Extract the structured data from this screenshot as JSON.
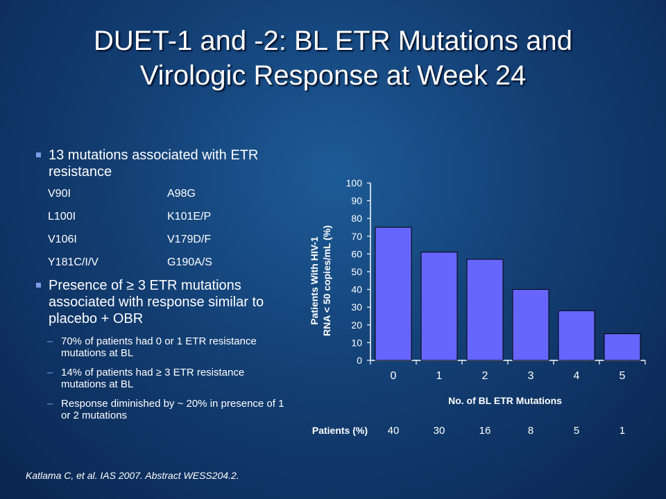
{
  "title_line1": "DUET-1 and -2: BL ETR Mutations and",
  "title_line2": "Virologic Response at Week 24",
  "bullet1": "13 mutations associated with ETR resistance",
  "mutations": [
    [
      "V90I",
      "A98G"
    ],
    [
      "L100I",
      "K101E/P"
    ],
    [
      "V106I",
      "V179D/F"
    ],
    [
      "Y181C/I/V",
      "G190A/S"
    ]
  ],
  "bullet2": "Presence of ≥ 3 ETR mutations associated with response similar to placebo + OBR",
  "subbullets": [
    "70% of patients had 0 or 1 ETR resistance mutations at BL",
    " 14% of patients had ≥ 3 ETR resistance mutations at BL",
    "Response diminished by ~ 20% in presence of 1 or 2 mutations"
  ],
  "citation": "Katlama C, et al. IAS 2007. Abstract WESS204.2.",
  "colors": {
    "bar": "#6666ff",
    "bullet": "#7f9be8"
  },
  "chart_data": {
    "type": "bar",
    "categories": [
      "0",
      "1",
      "2",
      "3",
      "4",
      "5"
    ],
    "values": [
      75,
      61,
      57,
      40,
      28,
      15
    ],
    "ylim": [
      0,
      100
    ],
    "yticks": [
      0,
      10,
      20,
      30,
      40,
      50,
      60,
      70,
      80,
      90,
      100
    ],
    "ylabel_line1": "Patients With HIV-1",
    "ylabel_line2": "RNA < 50 copies/mL (%)",
    "xlabel": "No. of BL ETR Mutations",
    "patients_label": "Patients (%)",
    "patients_pct": [
      40,
      30,
      16,
      8,
      5,
      1
    ],
    "grid": false,
    "legend": "none"
  }
}
